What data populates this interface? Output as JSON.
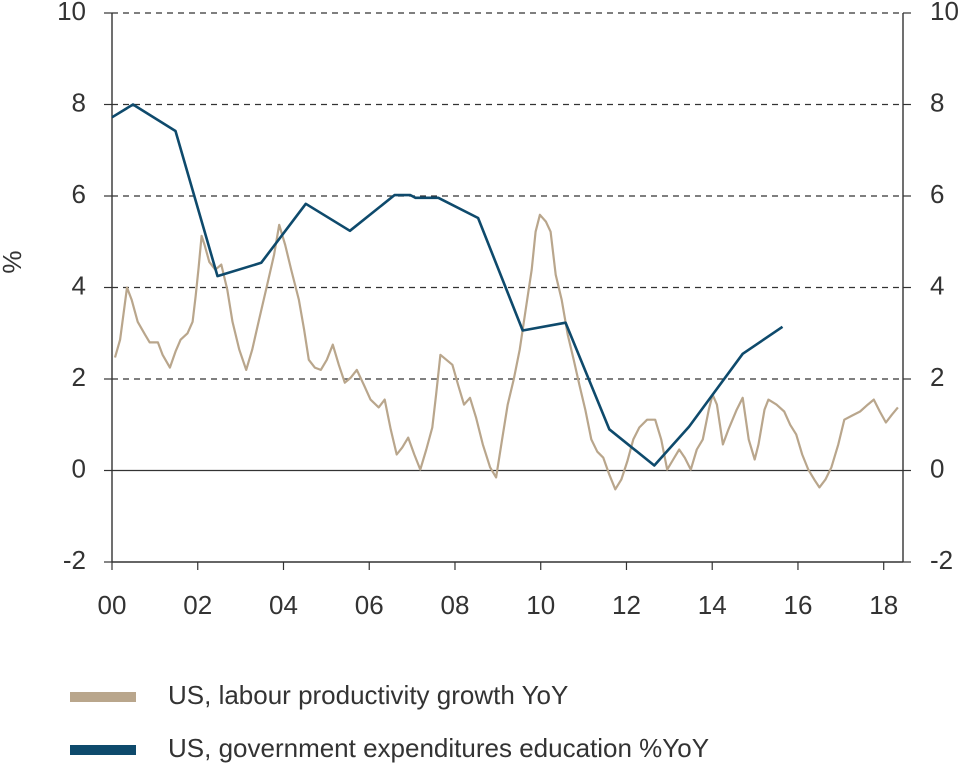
{
  "chart_data": {
    "type": "line",
    "ylabel": "%",
    "xlim": [
      0,
      18.45
    ],
    "xticks": [
      {
        "value": 0,
        "label": "00"
      },
      {
        "value": 2,
        "label": "02"
      },
      {
        "value": 4,
        "label": "04"
      },
      {
        "value": 6,
        "label": "06"
      },
      {
        "value": 8,
        "label": "08"
      },
      {
        "value": 10,
        "label": "10"
      },
      {
        "value": 12,
        "label": "12"
      },
      {
        "value": 14,
        "label": "14"
      },
      {
        "value": 16,
        "label": "16"
      },
      {
        "value": 18,
        "label": "18"
      }
    ],
    "ylim": [
      -2,
      10
    ],
    "yticks": [
      -2,
      0,
      2,
      4,
      6,
      8,
      10
    ],
    "y2lim": [
      -2,
      10
    ],
    "y2ticks": [
      -2,
      0,
      2,
      4,
      6,
      8,
      10
    ],
    "grid": true,
    "legend": "bottom",
    "series": [
      {
        "name": "US, labour productivity growth YoY",
        "color": "#b9a68c",
        "x": [
          0.07,
          0.19,
          0.35,
          0.46,
          0.6,
          0.77,
          0.88,
          1.07,
          1.18,
          1.35,
          1.48,
          1.6,
          1.76,
          1.88,
          1.95,
          2.02,
          2.09,
          2.16,
          2.27,
          2.41,
          2.55,
          2.69,
          2.81,
          2.97,
          3.13,
          3.27,
          3.43,
          3.62,
          3.78,
          3.9,
          4.04,
          4.18,
          4.36,
          4.48,
          4.59,
          4.73,
          4.87,
          5.01,
          5.15,
          5.29,
          5.43,
          5.57,
          5.71,
          5.87,
          6.03,
          6.22,
          6.36,
          6.5,
          6.64,
          6.77,
          6.91,
          7.05,
          7.19,
          7.33,
          7.47,
          7.56,
          7.66,
          7.8,
          7.94,
          8.07,
          8.21,
          8.35,
          8.49,
          8.65,
          8.82,
          8.96,
          9.1,
          9.23,
          9.37,
          9.51,
          9.65,
          9.79,
          9.88,
          9.98,
          10.12,
          10.23,
          10.35,
          10.49,
          10.63,
          10.77,
          10.9,
          11.04,
          11.18,
          11.32,
          11.46,
          11.6,
          11.74,
          11.88,
          12.02,
          12.16,
          12.3,
          12.48,
          12.67,
          12.81,
          12.95,
          13.09,
          13.23,
          13.36,
          13.5,
          13.64,
          13.78,
          13.92,
          14.01,
          14.11,
          14.25,
          14.38,
          14.57,
          14.71,
          14.85,
          14.99,
          15.08,
          15.22,
          15.31,
          15.5,
          15.68,
          15.82,
          15.96,
          16.1,
          16.24,
          16.38,
          16.5,
          16.64,
          16.78,
          16.94,
          17.08,
          17.26,
          17.45,
          17.63,
          17.77,
          17.91,
          18.05,
          18.19,
          18.33
        ],
        "values": [
          2.47,
          2.86,
          4.0,
          3.73,
          3.25,
          2.97,
          2.8,
          2.8,
          2.53,
          2.25,
          2.6,
          2.86,
          3.0,
          3.25,
          3.8,
          4.43,
          5.13,
          4.93,
          4.56,
          4.39,
          4.5,
          3.95,
          3.25,
          2.64,
          2.2,
          2.64,
          3.3,
          4.06,
          4.72,
          5.37,
          4.93,
          4.39,
          3.73,
          3.08,
          2.42,
          2.25,
          2.2,
          2.42,
          2.75,
          2.31,
          1.92,
          2.03,
          2.2,
          1.88,
          1.55,
          1.38,
          1.55,
          0.9,
          0.35,
          0.5,
          0.72,
          0.35,
          0.02,
          0.46,
          0.94,
          1.66,
          2.53,
          2.42,
          2.31,
          1.88,
          1.44,
          1.59,
          1.16,
          0.57,
          0.07,
          -0.15,
          0.68,
          1.44,
          1.99,
          2.64,
          3.52,
          4.39,
          5.22,
          5.59,
          5.44,
          5.22,
          4.28,
          3.73,
          2.97,
          2.42,
          1.88,
          1.33,
          0.68,
          0.41,
          0.28,
          -0.09,
          -0.41,
          -0.2,
          0.2,
          0.68,
          0.94,
          1.11,
          1.11,
          0.68,
          0.02,
          0.24,
          0.46,
          0.28,
          0.02,
          0.46,
          0.68,
          1.33,
          1.66,
          1.44,
          0.57,
          0.9,
          1.33,
          1.59,
          0.68,
          0.24,
          0.57,
          1.33,
          1.55,
          1.44,
          1.29,
          1.0,
          0.79,
          0.35,
          0.02,
          -0.2,
          -0.37,
          -0.2,
          0.07,
          0.57,
          1.11,
          1.2,
          1.29,
          1.44,
          1.55,
          1.29,
          1.05,
          1.22,
          1.38
        ]
      },
      {
        "name": "US, government expenditures education %YoY",
        "color": "#0e4a6c",
        "x": [
          0,
          0.49,
          1.48,
          2.46,
          3.48,
          4.52,
          5.55,
          6.59,
          6.96,
          7.08,
          7.61,
          8.54,
          9.58,
          10.58,
          11.6,
          12.65,
          13.46,
          14.71,
          15.64
        ],
        "values": [
          7.72,
          8.0,
          7.42,
          4.25,
          4.54,
          5.83,
          5.24,
          6.02,
          6.02,
          5.96,
          5.96,
          5.52,
          3.06,
          3.23,
          0.9,
          0.11,
          0.96,
          2.55,
          3.14
        ]
      }
    ]
  }
}
